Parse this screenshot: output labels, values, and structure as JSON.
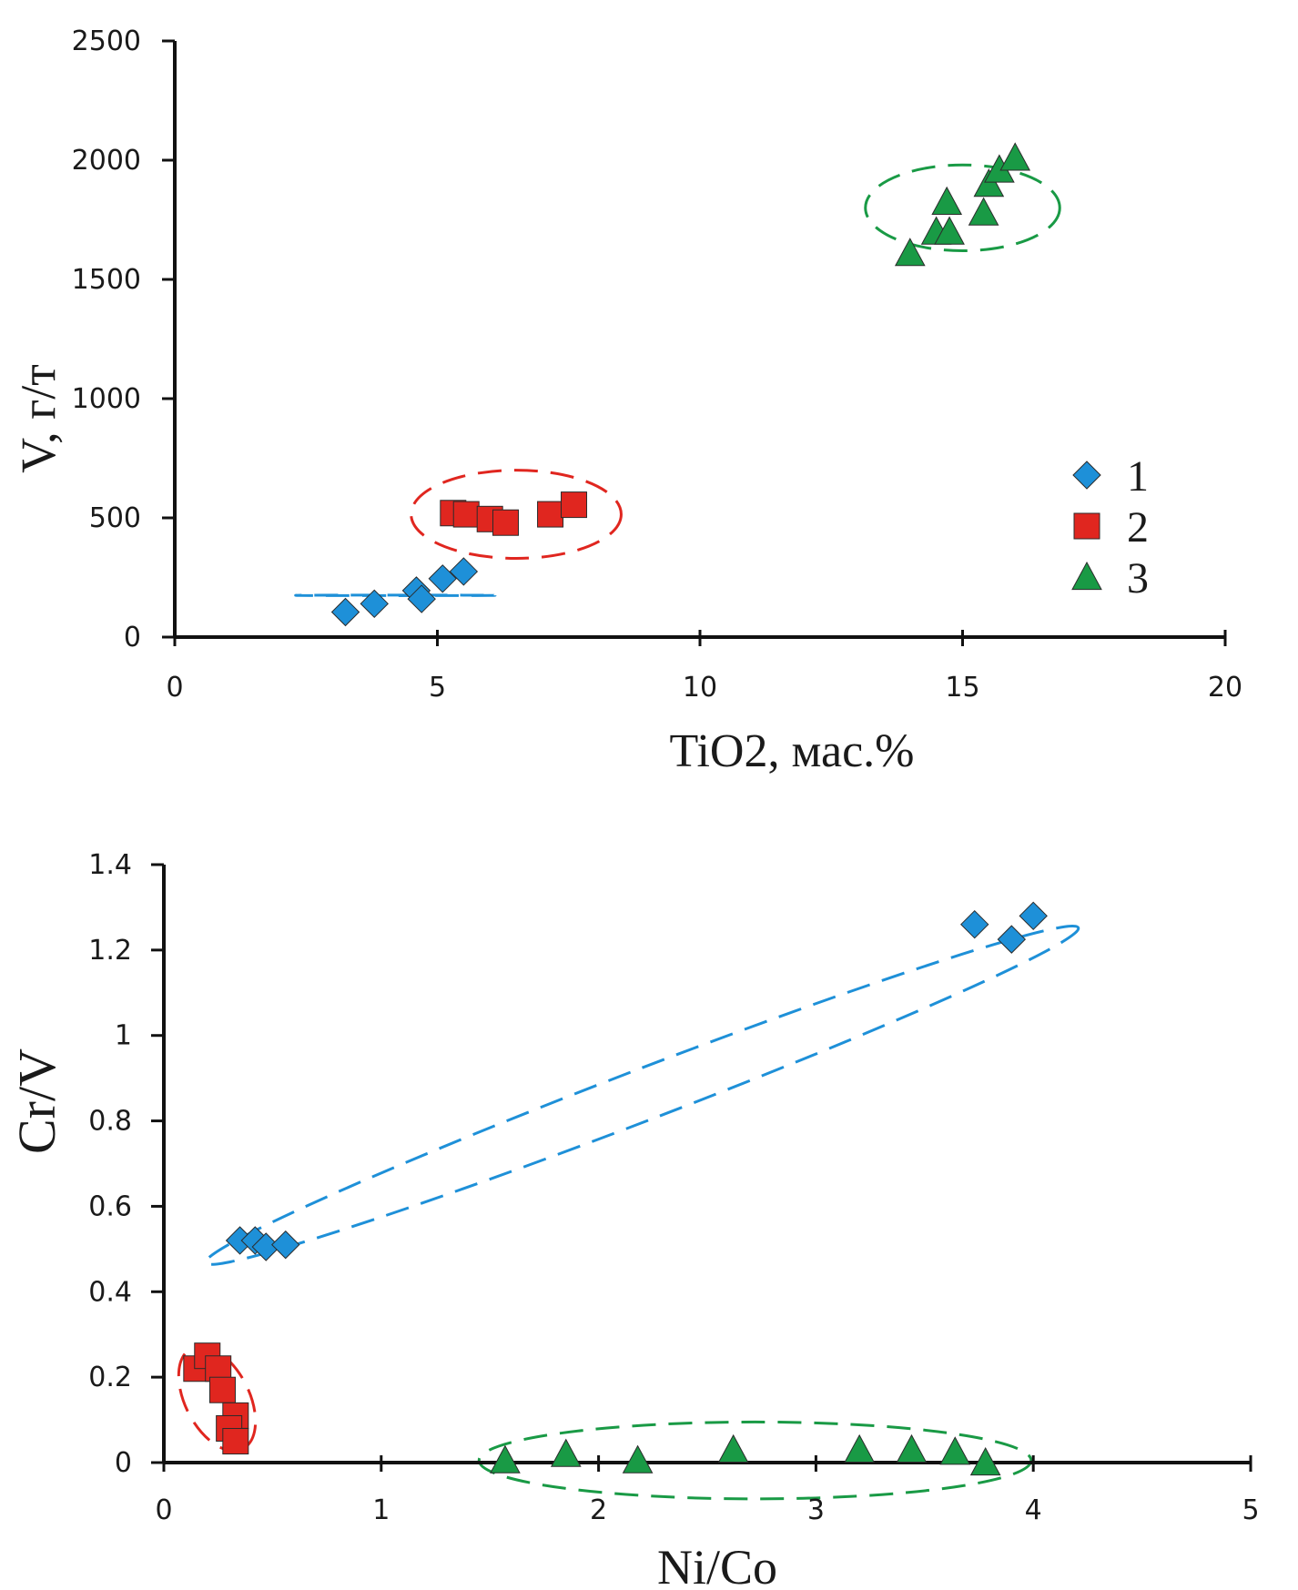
{
  "chart_data": [
    {
      "type": "scatter",
      "title": "",
      "xlabel": "TiO2, мас.%",
      "ylabel": "V, г/т",
      "xlim": [
        0,
        20
      ],
      "ylim": [
        0,
        2500
      ],
      "xticks": [
        "0",
        "5",
        "10",
        "15",
        "20"
      ],
      "yticks": [
        "0",
        "500",
        "1000",
        "1500",
        "2000",
        "2500"
      ],
      "xtick_values": [
        0,
        5,
        10,
        15,
        20
      ],
      "ytick_values": [
        0,
        500,
        1000,
        1500,
        2000,
        2500
      ],
      "grid": false,
      "legend_position": "right",
      "series": [
        {
          "name": "1",
          "marker": "diamond",
          "color": "#1e90d8",
          "x": [
            3.25,
            3.8,
            4.6,
            4.7,
            5.1,
            5.5
          ],
          "y": [
            105,
            140,
            195,
            160,
            245,
            275
          ]
        },
        {
          "name": "2",
          "marker": "square",
          "color": "#e0261f",
          "x": [
            5.3,
            5.55,
            6.0,
            6.3,
            7.15,
            7.6
          ],
          "y": [
            520,
            515,
            495,
            480,
            515,
            555
          ]
        },
        {
          "name": "3",
          "marker": "triangle",
          "color": "#199a45",
          "x": [
            14.0,
            14.5,
            14.75,
            14.7,
            15.4,
            15.5,
            15.7,
            16.0
          ],
          "y": [
            1610,
            1700,
            1700,
            1825,
            1780,
            1900,
            1960,
            2010
          ]
        }
      ],
      "ellipses": [
        {
          "series": "1",
          "color": "#1e90d8",
          "cx": 4.2,
          "cy": 175,
          "rx": 1.9,
          "ry": 1.1
        },
        {
          "series": "2",
          "color": "#e0261f",
          "cx": 6.5,
          "cy": 515,
          "rx": 2.0,
          "ry": 185
        },
        {
          "series": "3",
          "color": "#199a45",
          "cx": 15.0,
          "cy": 1800,
          "rx": 1.85,
          "ry": 180
        }
      ]
    },
    {
      "type": "scatter",
      "title": "",
      "xlabel": "Ni/Co",
      "ylabel": "Cr/V",
      "xlim": [
        0,
        5
      ],
      "ylim": [
        0,
        1.4
      ],
      "xticks": [
        "0",
        "1",
        "2",
        "3",
        "4",
        "5"
      ],
      "yticks": [
        "0",
        "0.2",
        "0.4",
        "0.6",
        "0.8",
        "1",
        "1.2",
        "1.4"
      ],
      "xtick_values": [
        0,
        1,
        2,
        3,
        4,
        5
      ],
      "ytick_values": [
        0,
        0.2,
        0.4,
        0.6,
        0.8,
        1.0,
        1.2,
        1.4
      ],
      "grid": false,
      "series": [
        {
          "name": "1",
          "marker": "diamond",
          "color": "#1e90d8",
          "x": [
            0.35,
            0.42,
            0.47,
            0.56,
            3.73,
            3.9,
            4.0
          ],
          "y": [
            0.52,
            0.52,
            0.505,
            0.51,
            1.26,
            1.225,
            1.28
          ]
        },
        {
          "name": "2",
          "marker": "square",
          "color": "#e0261f",
          "x": [
            0.15,
            0.2,
            0.25,
            0.27,
            0.33,
            0.3,
            0.33
          ],
          "y": [
            0.22,
            0.25,
            0.22,
            0.17,
            0.11,
            0.08,
            0.05
          ]
        },
        {
          "name": "3",
          "marker": "triangle",
          "color": "#199a45",
          "x": [
            1.57,
            1.85,
            2.18,
            2.62,
            3.2,
            3.44,
            3.64,
            3.78
          ],
          "y": [
            0.005,
            0.02,
            0.005,
            0.03,
            0.03,
            0.03,
            0.025,
            0.0
          ]
        }
      ],
      "ellipses": [
        {
          "series": "1",
          "color": "#1e90d8",
          "cx": 2.2,
          "cy": 0.86,
          "rx": 2.15,
          "ry": 0.06,
          "rotate_deg": -21
        },
        {
          "series": "2",
          "color": "#e0261f",
          "cx": 0.245,
          "cy": 0.15,
          "rx": 0.26,
          "ry": 0.075,
          "rotate_deg": 63
        },
        {
          "series": "3",
          "color": "#199a45",
          "cx": 2.72,
          "cy": 0.005,
          "rx": 1.27,
          "ry": 0.09
        }
      ]
    }
  ]
}
